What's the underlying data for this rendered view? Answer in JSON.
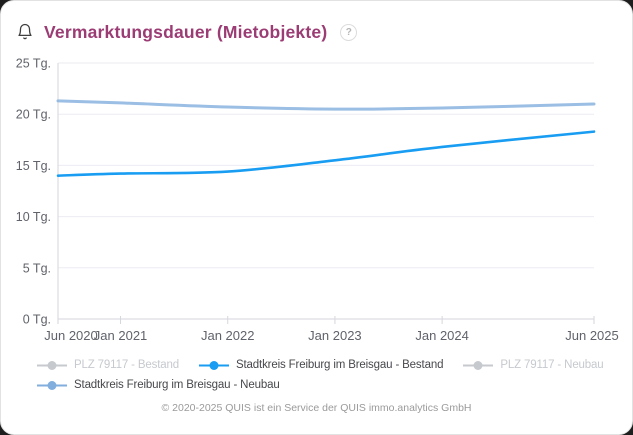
{
  "header": {
    "title": "Vermarktungsdauer (Mietobjekte)",
    "help_icon": "?"
  },
  "icons": {
    "header_left": "bell-icon",
    "header_right": "question-mark-icon"
  },
  "chart_data": {
    "type": "line",
    "title": "Vermarktungsdauer (Mietobjekte)",
    "x_unit": "months since Jun 2020",
    "xlim": [
      0,
      60
    ],
    "ylim": [
      0,
      25
    ],
    "grid": true,
    "legend_position": "bottom-left",
    "y_ticks": [
      {
        "value": 0,
        "label": "0 Tg."
      },
      {
        "value": 5,
        "label": "5 Tg."
      },
      {
        "value": 10,
        "label": "10 Tg."
      },
      {
        "value": 15,
        "label": "15 Tg."
      },
      {
        "value": 20,
        "label": "20 Tg."
      },
      {
        "value": 25,
        "label": "25 Tg."
      }
    ],
    "x_ticks": [
      {
        "month": 0,
        "label": "Jun 2020"
      },
      {
        "month": 7,
        "label": "Jan 2021"
      },
      {
        "month": 19,
        "label": "Jan 2022"
      },
      {
        "month": 31,
        "label": "Jan 2023"
      },
      {
        "month": 43,
        "label": "Jan 2024"
      },
      {
        "month": 60,
        "label": "Jun 2025"
      }
    ],
    "series": [
      {
        "name": "Stadtkreis Freiburg im Breisgau - Bestand",
        "color": "#189df2",
        "width": 2.6,
        "opacity": 1,
        "x": [
          0,
          7,
          19,
          31,
          43,
          60
        ],
        "values": [
          14.0,
          14.2,
          14.4,
          15.5,
          16.8,
          18.3
        ]
      },
      {
        "name": "Stadtkreis Freiburg im Breisgau - Neubau",
        "color": "#82aedd",
        "width": 3,
        "opacity": 0.8,
        "x": [
          0,
          7,
          19,
          31,
          43,
          60
        ],
        "values": [
          21.3,
          21.1,
          20.7,
          20.5,
          20.6,
          21.0
        ]
      }
    ],
    "legend": [
      {
        "label": "PLZ 79117 - Bestand",
        "active": false,
        "color": "#c6c9ce"
      },
      {
        "label": "Stadtkreis Freiburg im Breisgau - Bestand",
        "active": true,
        "color": "#189df2"
      },
      {
        "label": "PLZ 79117 - Neubau",
        "active": false,
        "color": "#c6c9ce"
      },
      {
        "label": "Stadtkreis Freiburg im Breisgau - Neubau",
        "active": true,
        "color": "#82aedd"
      }
    ]
  },
  "colors": {
    "title": "#9b3c74",
    "grid": "#ebebf2",
    "axis_line": "#d6d6de",
    "axis_text": "#60636b",
    "legend_active_text": "#47484c",
    "legend_inactive": "#c6c9ce",
    "footer_text": "#9a9a9a"
  },
  "footer": {
    "copyright": "© 2020-2025 QUIS ist ein Service der QUIS immo.analytics GmbH"
  }
}
